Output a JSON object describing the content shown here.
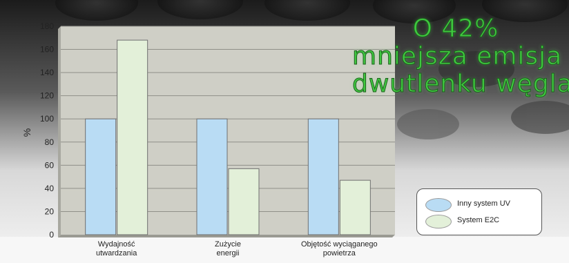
{
  "headline": {
    "line1": "O 42%",
    "line2": "mniejsza emisja",
    "line3": "dwutlenku węgla"
  },
  "chart_data": {
    "type": "bar",
    "ylabel": "%",
    "ylim": [
      0,
      180
    ],
    "yticks": [
      0,
      20,
      40,
      60,
      80,
      100,
      120,
      140,
      160,
      180
    ],
    "categories": [
      [
        "Wydajność",
        "utwardzania"
      ],
      [
        "Zużycie",
        "energii"
      ],
      [
        "Objętość wyciąganego",
        "powietrza"
      ]
    ],
    "series": [
      {
        "name": "Inny system UV",
        "values": [
          100,
          100,
          100
        ],
        "color": "#b9dcf4"
      },
      {
        "name": "System E2C",
        "values": [
          168,
          57,
          47
        ],
        "color": "#e3f0d9"
      }
    ],
    "grid": true,
    "legend_position": "bottom-right"
  }
}
